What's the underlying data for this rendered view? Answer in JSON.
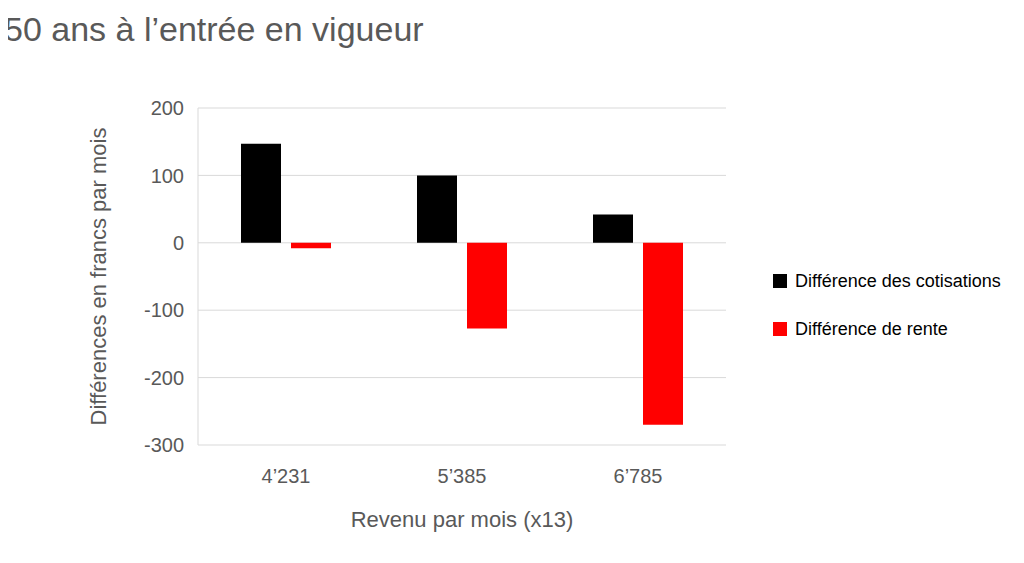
{
  "chart_data": {
    "type": "bar",
    "title": "50 ans à l’entrée en vigueur",
    "x_label": "Revenu par mois (x13)",
    "y_label": "Différences en francs par mois",
    "categories": [
      "4’231",
      "5’385",
      "6’785"
    ],
    "series": [
      {
        "name": "Différence des cotisations",
        "color": "#000000",
        "values": [
          147,
          100,
          42
        ]
      },
      {
        "name": "Différence de rente",
        "color": "#ff0000",
        "values": [
          -8,
          -127,
          -270
        ]
      }
    ],
    "ylim": [
      -300,
      200
    ],
    "yticks": [
      -300,
      -200,
      -100,
      0,
      100,
      200
    ],
    "grid": true,
    "legend": "right"
  }
}
